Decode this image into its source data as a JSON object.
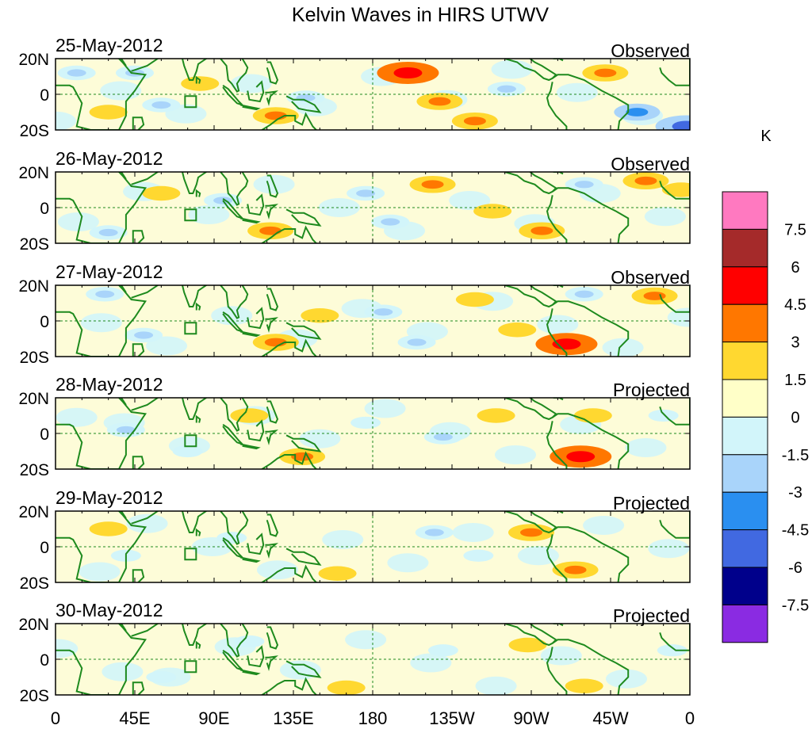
{
  "title": "Kelvin Waves in HIRS UTWV",
  "panels": [
    {
      "date": "25-May-2012",
      "status": "Observed"
    },
    {
      "date": "26-May-2012",
      "status": "Observed"
    },
    {
      "date": "27-May-2012",
      "status": "Observed"
    },
    {
      "date": "28-May-2012",
      "status": "Projected"
    },
    {
      "date": "29-May-2012",
      "status": "Projected"
    },
    {
      "date": "30-May-2012",
      "status": "Projected"
    }
  ],
  "lat_labels": [
    "20N",
    "0",
    "20S"
  ],
  "lon_labels": [
    "0",
    "45E",
    "90E",
    "135E",
    "180",
    "135W",
    "90W",
    "45W",
    "0"
  ],
  "colorbar": {
    "unit": "K",
    "levels": [
      "7.5",
      "6",
      "4.5",
      "3",
      "1.5",
      "0",
      "-1.5",
      "-3",
      "-4.5",
      "-6",
      "-7.5"
    ],
    "colors": [
      "#ff79c0",
      "#a52a2a",
      "#ff0000",
      "#ff7700",
      "#ffd830",
      "#ffffc8",
      "#d2f5fa",
      "#a9d4fa",
      "#2a8ff0",
      "#4169e1",
      "#00008b",
      "#8a2be2"
    ]
  },
  "colors": {
    "coast": "#1e8a1e",
    "reference_line": "#1e8a1e",
    "background_field": "#fdfcd8"
  },
  "anomalies": [
    [
      {
        "lon": 45,
        "lat": 12,
        "v": -2
      },
      {
        "lon": 82,
        "lat": 6,
        "v": 2
      },
      {
        "lon": 125,
        "lat": -12,
        "v": 3
      },
      {
        "lon": 142,
        "lat": -2,
        "v": -2
      },
      {
        "lon": 200,
        "lat": 12,
        "v": 5
      },
      {
        "lon": 218,
        "lat": -4,
        "v": 3
      },
      {
        "lon": 256,
        "lat": 3,
        "v": -2
      },
      {
        "lon": 312,
        "lat": 12,
        "v": 3
      },
      {
        "lon": 330,
        "lat": -10,
        "v": -3
      },
      {
        "lon": 30,
        "lat": -10,
        "v": 2
      },
      {
        "lon": 358,
        "lat": -18,
        "v": -5
      },
      {
        "lon": 60,
        "lat": -6,
        "v": -2
      },
      {
        "lon": 238,
        "lat": -15,
        "v": 3
      },
      {
        "lon": 12,
        "lat": 12,
        "v": -2
      }
    ],
    [
      {
        "lon": 122,
        "lat": -13,
        "v": 3
      },
      {
        "lon": 214,
        "lat": 13,
        "v": 3
      },
      {
        "lon": 176,
        "lat": 8,
        "v": -2
      },
      {
        "lon": 300,
        "lat": 13,
        "v": -2
      },
      {
        "lon": 335,
        "lat": 15,
        "v": 3
      },
      {
        "lon": 276,
        "lat": -13,
        "v": 3
      },
      {
        "lon": 190,
        "lat": -8,
        "v": -2
      },
      {
        "lon": 30,
        "lat": -14,
        "v": -2
      },
      {
        "lon": 95,
        "lat": 4,
        "v": -2
      },
      {
        "lon": 248,
        "lat": -2,
        "v": 2
      },
      {
        "lon": 355,
        "lat": 10,
        "v": 2
      },
      {
        "lon": 60,
        "lat": 8,
        "v": 2
      }
    ],
    [
      {
        "lon": 290,
        "lat": -13,
        "v": 5
      },
      {
        "lon": 238,
        "lat": 12,
        "v": 2
      },
      {
        "lon": 186,
        "lat": 5,
        "v": -2
      },
      {
        "lon": 300,
        "lat": 15,
        "v": -2
      },
      {
        "lon": 125,
        "lat": -12,
        "v": 3
      },
      {
        "lon": 340,
        "lat": 14,
        "v": 3
      },
      {
        "lon": 262,
        "lat": -5,
        "v": 2
      },
      {
        "lon": 50,
        "lat": -8,
        "v": -2
      },
      {
        "lon": 28,
        "lat": 15,
        "v": -2
      },
      {
        "lon": 150,
        "lat": 3,
        "v": 2
      },
      {
        "lon": 205,
        "lat": -12,
        "v": -2
      }
    ],
    [
      {
        "lon": 298,
        "lat": -13,
        "v": 5
      },
      {
        "lon": 250,
        "lat": 10,
        "v": 2
      },
      {
        "lon": 220,
        "lat": -2,
        "v": -2
      },
      {
        "lon": 176,
        "lat": 6,
        "v": -1
      },
      {
        "lon": 140,
        "lat": -13,
        "v": 3
      },
      {
        "lon": 305,
        "lat": 10,
        "v": 2
      },
      {
        "lon": 40,
        "lat": 2,
        "v": -2
      },
      {
        "lon": 75,
        "lat": -10,
        "v": -1
      },
      {
        "lon": 345,
        "lat": 10,
        "v": -1
      },
      {
        "lon": 110,
        "lat": 10,
        "v": 2
      }
    ],
    [
      {
        "lon": 270,
        "lat": 8,
        "v": 3
      },
      {
        "lon": 295,
        "lat": -13,
        "v": 3
      },
      {
        "lon": 215,
        "lat": 8,
        "v": -2
      },
      {
        "lon": 240,
        "lat": -5,
        "v": -1
      },
      {
        "lon": 160,
        "lat": -15,
        "v": 2
      },
      {
        "lon": 40,
        "lat": -5,
        "v": -1
      },
      {
        "lon": 100,
        "lat": 5,
        "v": -1
      },
      {
        "lon": 30,
        "lat": 10,
        "v": 2
      }
    ],
    [
      {
        "lon": 268,
        "lat": 8,
        "v": 2
      },
      {
        "lon": 300,
        "lat": -15,
        "v": 2
      },
      {
        "lon": 220,
        "lat": 5,
        "v": -1
      },
      {
        "lon": 165,
        "lat": -16,
        "v": 2
      },
      {
        "lon": 60,
        "lat": -10,
        "v": -1
      },
      {
        "lon": 110,
        "lat": 10,
        "v": -1
      },
      {
        "lon": 350,
        "lat": 5,
        "v": -1
      }
    ]
  ]
}
